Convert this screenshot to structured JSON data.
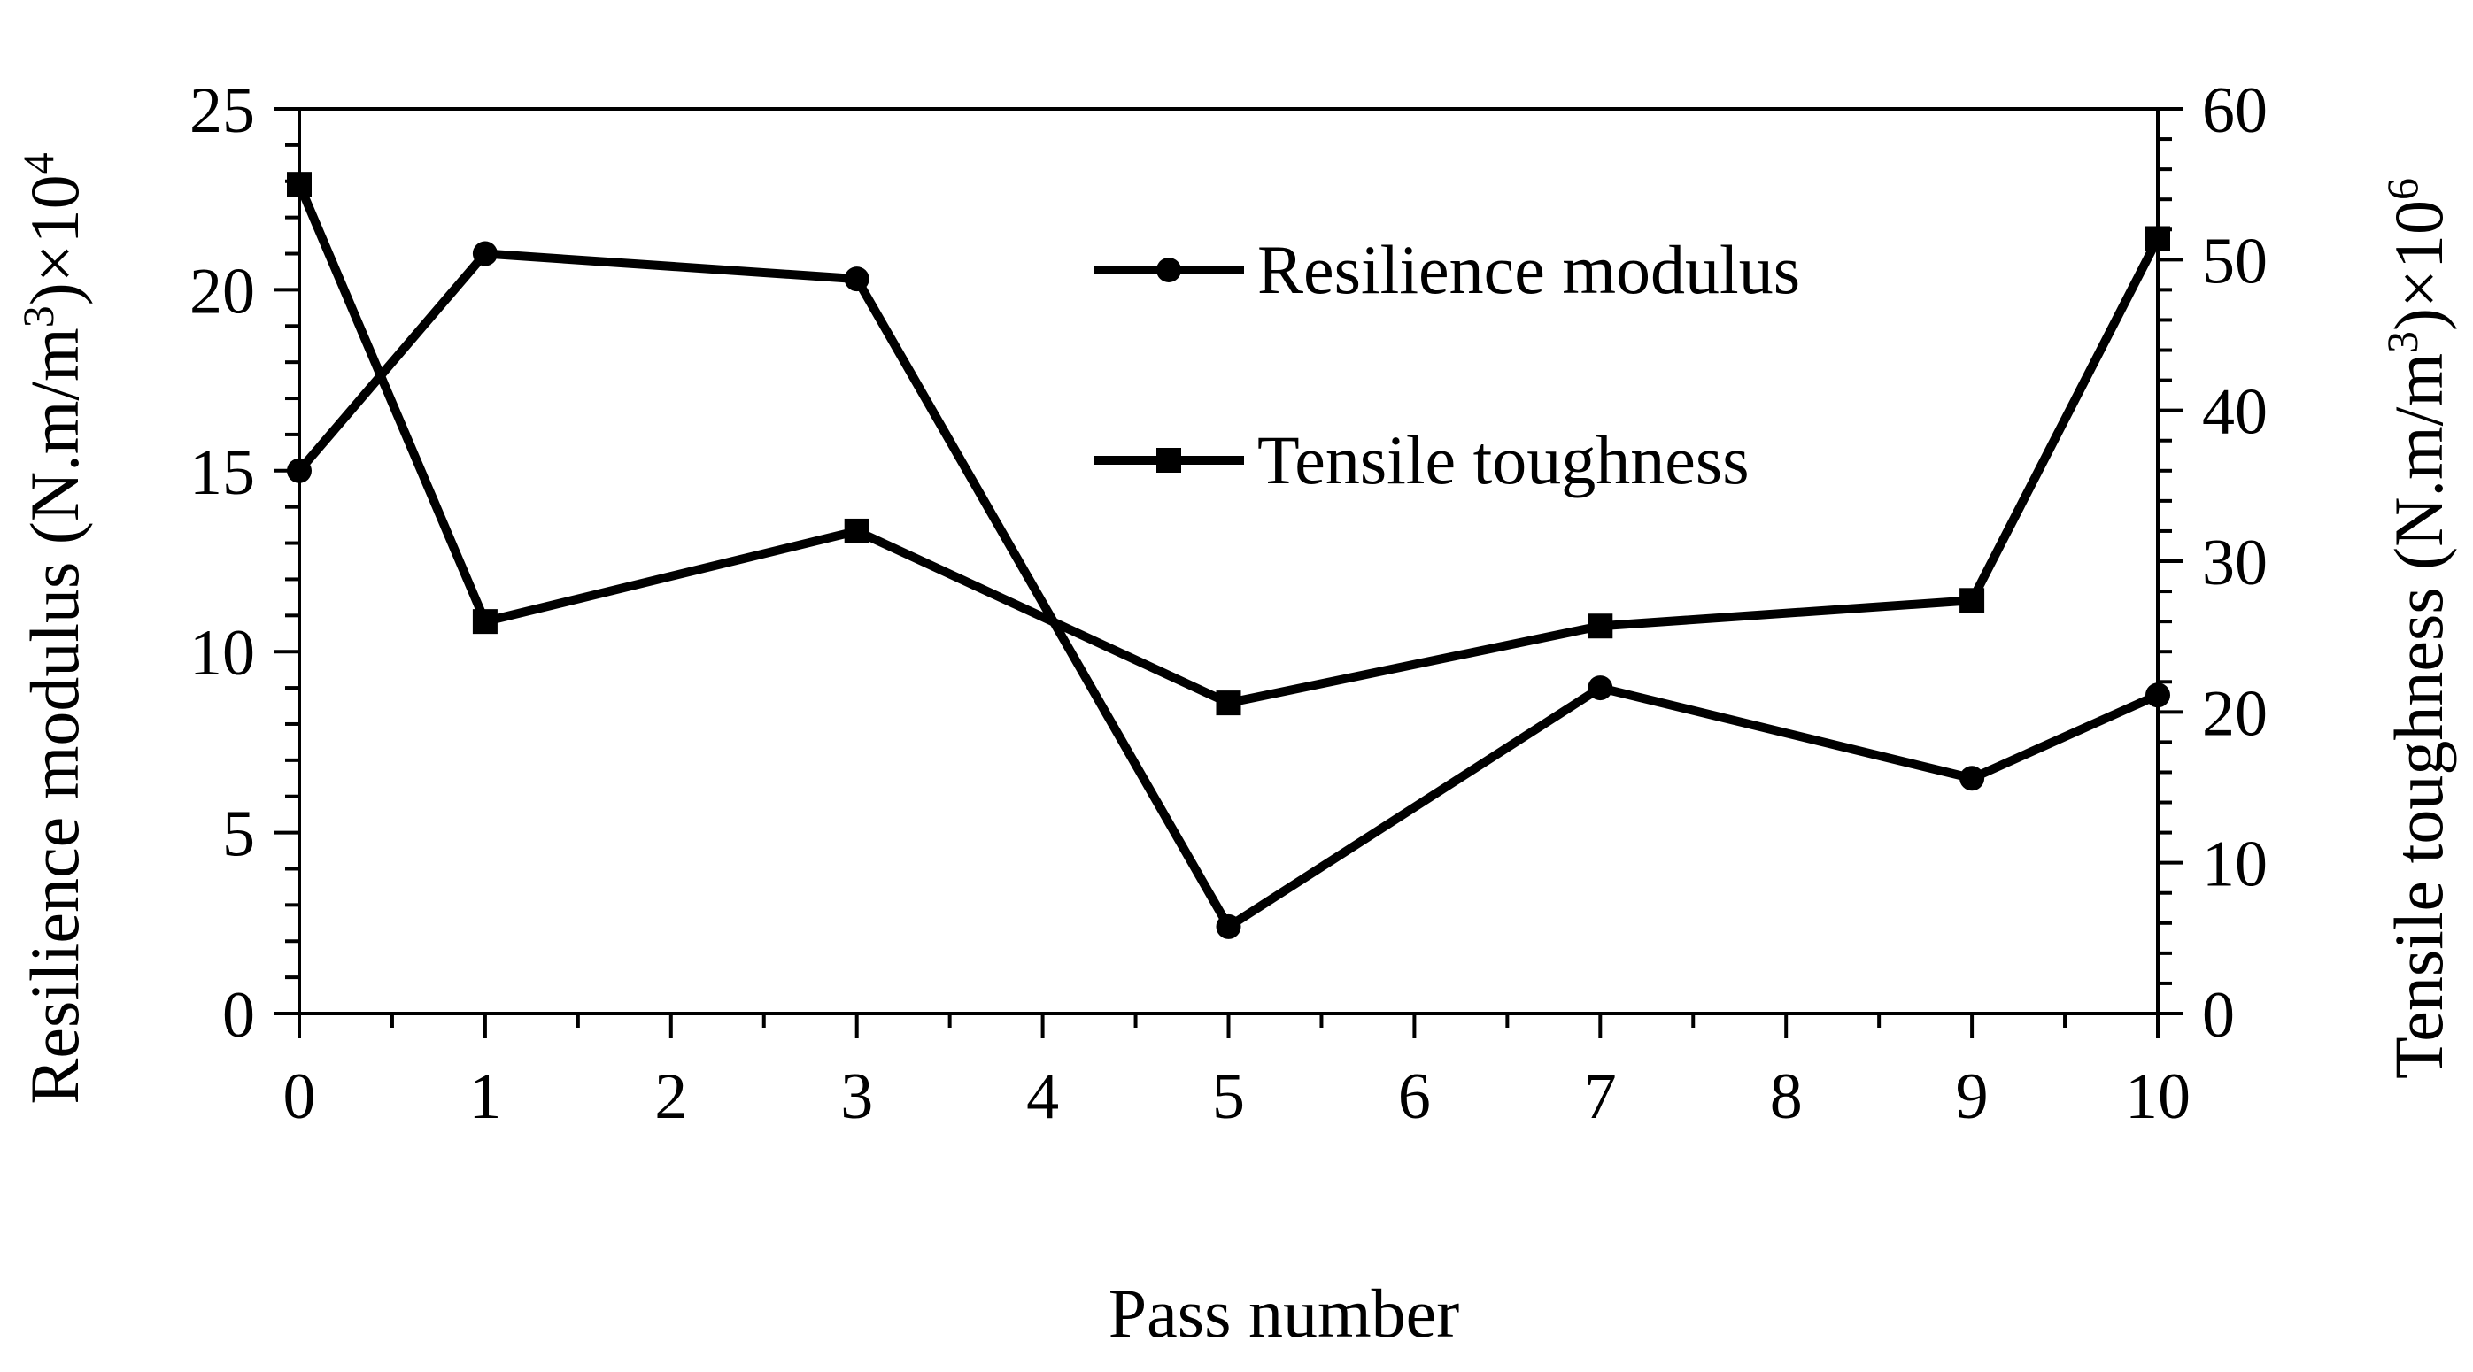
{
  "chart_data": {
    "type": "line",
    "x": [
      0,
      1,
      3,
      5,
      7,
      9,
      10
    ],
    "xticks": [
      0,
      1,
      2,
      3,
      4,
      5,
      6,
      7,
      8,
      9,
      10
    ],
    "xlim": [
      0,
      10
    ],
    "xlabel": "Pass number",
    "ylabel_left": {
      "main": "Resilience modulus (N.m/m",
      "sup1": "3",
      "mid": ")×10",
      "sup2": "4"
    },
    "ylabel_right": {
      "main": "Tensile toughness (N.m/m",
      "sup1": "3",
      "mid": ")×10",
      "sup2": "6"
    },
    "ylim_left": [
      0,
      25
    ],
    "yticks_left": [
      0,
      5,
      10,
      15,
      20,
      25
    ],
    "ylim_right": [
      0,
      60
    ],
    "yticks_right": [
      0,
      10,
      20,
      30,
      40,
      50,
      60
    ],
    "grid": false,
    "legend_position": "top-right",
    "series": [
      {
        "name": "Resilience modulus",
        "axis": "left",
        "marker": "circle",
        "color": "#000000",
        "values": [
          15.0,
          21.0,
          20.3,
          2.4,
          9.0,
          6.5,
          8.8
        ]
      },
      {
        "name": "Tensile toughness",
        "axis": "right",
        "marker": "square",
        "color": "#000000",
        "values": [
          55.0,
          26.0,
          32.0,
          20.6,
          25.7,
          27.4,
          51.4
        ]
      }
    ]
  }
}
